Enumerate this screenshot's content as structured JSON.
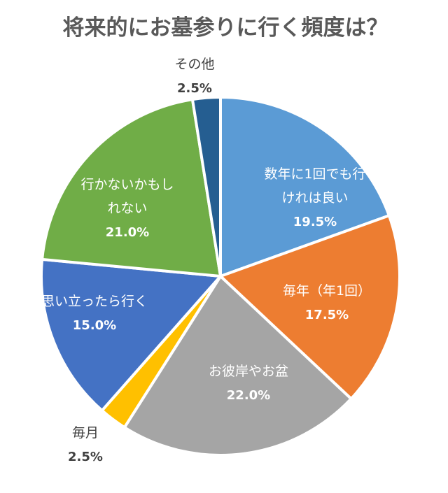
{
  "chart_data": {
    "type": "pie",
    "title": "将来的にお墓参りに行く頻度は？",
    "start_angle_deg": 0,
    "direction": "clockwise",
    "slices": [
      {
        "label": "数年に1回でも行けれは良い",
        "label_lines": [
          "数年に1回でも行",
          "けれは良い"
        ],
        "value": 19.5,
        "value_label": "19.5%",
        "color": "#5B9BD5",
        "label_position": "inside"
      },
      {
        "label": "毎年（年1回）",
        "label_lines": [
          "毎年（年1回）"
        ],
        "value": 17.5,
        "value_label": "17.5%",
        "color": "#ED7D31",
        "label_position": "inside"
      },
      {
        "label": "お彼岸やお盆",
        "label_lines": [
          "お彼岸やお盆"
        ],
        "value": 22.0,
        "value_label": "22.0%",
        "color": "#A5A5A5",
        "label_position": "inside"
      },
      {
        "label": "毎月",
        "label_lines": [
          "毎月"
        ],
        "value": 2.5,
        "value_label": "2.5%",
        "color": "#FFC000",
        "label_position": "outside"
      },
      {
        "label": "思い立ったら行く",
        "label_lines": [
          "思い立ったら行く"
        ],
        "value": 15.0,
        "value_label": "15.0%",
        "color": "#4472C4",
        "label_position": "inside"
      },
      {
        "label": "行かないかもしれない",
        "label_lines": [
          "行かないかもし",
          "れない"
        ],
        "value": 21.0,
        "value_label": "21.0%",
        "color": "#70AD47",
        "label_position": "inside"
      },
      {
        "label": "その他",
        "label_lines": [
          "その他"
        ],
        "value": 2.5,
        "value_label": "2.5%",
        "color": "#255E91",
        "label_position": "outside"
      }
    ]
  }
}
